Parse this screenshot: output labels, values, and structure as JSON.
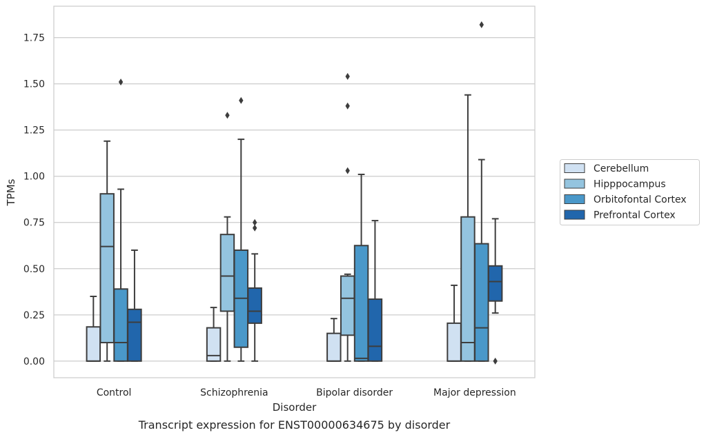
{
  "chart_data": {
    "type": "box",
    "title": "",
    "caption": "Transcript expression for ENST00000634675 by disorder",
    "xlabel": "Disorder",
    "ylabel": "TPMs",
    "ylim": [
      -0.09,
      1.92
    ],
    "yticks": [
      "0.00",
      "0.25",
      "0.50",
      "0.75",
      "1.00",
      "1.25",
      "1.50",
      "1.75"
    ],
    "grid": "horizontal",
    "legend_position": "right",
    "categories": [
      "Control",
      "Schizophrenia",
      "Bipolar disorder",
      "Major depression"
    ],
    "series": [
      {
        "name": "Cerebellum",
        "color": "#d0e1f2",
        "boxes": [
          {
            "q1": 0.0,
            "median": 0.0,
            "q3": 0.185,
            "whisker_low": 0.0,
            "whisker_high": 0.35,
            "outliers": []
          },
          {
            "q1": 0.0,
            "median": 0.03,
            "q3": 0.18,
            "whisker_low": 0.0,
            "whisker_high": 0.29,
            "outliers": []
          },
          {
            "q1": 0.0,
            "median": 0.0,
            "q3": 0.15,
            "whisker_low": 0.0,
            "whisker_high": 0.23,
            "outliers": []
          },
          {
            "q1": 0.0,
            "median": 0.0,
            "q3": 0.205,
            "whisker_low": 0.0,
            "whisker_high": 0.41,
            "outliers": []
          }
        ]
      },
      {
        "name": "Hipppocampus",
        "color": "#94c4df",
        "boxes": [
          {
            "q1": 0.1,
            "median": 0.62,
            "q3": 0.905,
            "whisker_low": 0.0,
            "whisker_high": 1.19,
            "outliers": []
          },
          {
            "q1": 0.27,
            "median": 0.46,
            "q3": 0.685,
            "whisker_low": 0.0,
            "whisker_high": 0.78,
            "outliers": [
              1.33
            ]
          },
          {
            "q1": 0.14,
            "median": 0.34,
            "q3": 0.46,
            "whisker_low": 0.0,
            "whisker_high": 0.47,
            "outliers": [
              1.03,
              1.38,
              1.54
            ]
          },
          {
            "q1": 0.0,
            "median": 0.1,
            "q3": 0.78,
            "whisker_low": 0.0,
            "whisker_high": 1.44,
            "outliers": []
          }
        ]
      },
      {
        "name": "Orbitofontal Cortex",
        "color": "#4a98c9",
        "boxes": [
          {
            "q1": 0.0,
            "median": 0.1,
            "q3": 0.39,
            "whisker_low": 0.0,
            "whisker_high": 0.93,
            "outliers": [
              1.51
            ]
          },
          {
            "q1": 0.075,
            "median": 0.34,
            "q3": 0.6,
            "whisker_low": 0.0,
            "whisker_high": 1.2,
            "outliers": [
              1.41
            ]
          },
          {
            "q1": 0.0,
            "median": 0.015,
            "q3": 0.625,
            "whisker_low": 0.0,
            "whisker_high": 1.01,
            "outliers": []
          },
          {
            "q1": 0.0,
            "median": 0.18,
            "q3": 0.635,
            "whisker_low": 0.0,
            "whisker_high": 1.09,
            "outliers": [
              1.82
            ]
          }
        ]
      },
      {
        "name": "Prefrontal Cortex",
        "color": "#2166ac",
        "boxes": [
          {
            "q1": 0.0,
            "median": 0.21,
            "q3": 0.28,
            "whisker_low": 0.0,
            "whisker_high": 0.6,
            "outliers": []
          },
          {
            "q1": 0.205,
            "median": 0.27,
            "q3": 0.395,
            "whisker_low": 0.0,
            "whisker_high": 0.58,
            "outliers": [
              0.72,
              0.75
            ]
          },
          {
            "q1": 0.0,
            "median": 0.08,
            "q3": 0.335,
            "whisker_low": 0.0,
            "whisker_high": 0.76,
            "outliers": []
          },
          {
            "q1": 0.325,
            "median": 0.43,
            "q3": 0.515,
            "whisker_low": 0.26,
            "whisker_high": 0.77,
            "outliers": [
              0.0
            ]
          }
        ]
      }
    ]
  }
}
